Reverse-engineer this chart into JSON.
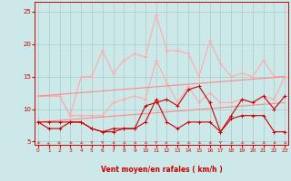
{
  "bg_color": "#cce8e8",
  "grid_color": "#aacccc",
  "xlabel": "Vent moyen/en rafales ( km/h )",
  "xlim": [
    -0.3,
    23.3
  ],
  "ylim": [
    4.5,
    26.5
  ],
  "yticks": [
    5,
    10,
    15,
    20,
    25
  ],
  "xticks": [
    0,
    1,
    2,
    3,
    4,
    5,
    6,
    7,
    8,
    9,
    10,
    11,
    12,
    13,
    14,
    15,
    16,
    17,
    18,
    19,
    20,
    21,
    22,
    23
  ],
  "series": {
    "light_hi": [
      12.0,
      12.0,
      12.0,
      9.0,
      15.0,
      15.0,
      19.0,
      15.5,
      17.5,
      18.5,
      18.0,
      24.5,
      19.0,
      19.0,
      18.5,
      15.0,
      20.5,
      17.0,
      15.0,
      15.5,
      15.0,
      17.5,
      15.0,
      15.0
    ],
    "light_lo": [
      12.0,
      12.0,
      12.0,
      9.0,
      9.0,
      9.0,
      9.0,
      11.0,
      11.5,
      12.0,
      11.5,
      17.5,
      14.0,
      11.0,
      13.5,
      11.0,
      12.5,
      11.0,
      11.0,
      11.5,
      11.0,
      12.0,
      11.5,
      15.0
    ],
    "trend_hi": [
      12.0,
      12.13,
      12.26,
      12.39,
      12.52,
      12.65,
      12.78,
      12.91,
      13.04,
      13.17,
      13.3,
      13.43,
      13.56,
      13.69,
      13.82,
      13.95,
      14.08,
      14.21,
      14.34,
      14.47,
      14.6,
      14.73,
      14.86,
      14.99
    ],
    "trend_lo": [
      8.0,
      8.13,
      8.26,
      8.39,
      8.52,
      8.65,
      8.78,
      8.91,
      9.04,
      9.17,
      9.3,
      9.43,
      9.56,
      9.69,
      9.82,
      9.95,
      10.08,
      10.21,
      10.34,
      10.47,
      10.6,
      10.73,
      10.86,
      10.99
    ],
    "dark_hi": [
      8.0,
      8.0,
      8.0,
      8.0,
      8.0,
      7.0,
      6.5,
      7.0,
      7.0,
      7.0,
      10.5,
      11.0,
      11.5,
      10.5,
      13.0,
      13.5,
      11.0,
      6.5,
      9.0,
      11.5,
      11.0,
      12.0,
      10.0,
      12.0
    ],
    "dark_lo": [
      8.0,
      7.0,
      7.0,
      8.0,
      8.0,
      7.0,
      6.5,
      6.5,
      7.0,
      7.0,
      8.0,
      11.5,
      8.0,
      7.0,
      8.0,
      8.0,
      8.0,
      6.5,
      8.5,
      9.0,
      9.0,
      9.0,
      6.5,
      6.5
    ]
  },
  "colors": {
    "light": "#ffaaaa",
    "medium": "#ff8888",
    "dark": "#cc0000"
  },
  "lw": 0.8,
  "ms": 2.5
}
